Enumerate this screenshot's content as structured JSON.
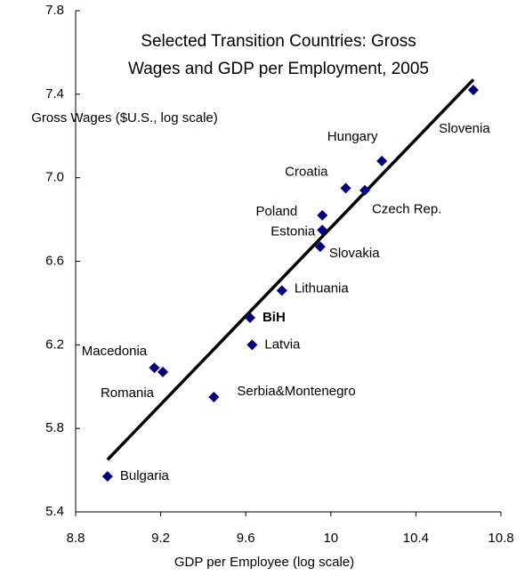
{
  "chart_data": {
    "type": "scatter",
    "title": [
      "Selected Transition Countries: Gross",
      "Wages and GDP per Employment, 2005"
    ],
    "x_label": "GDP per Employee (log scale)",
    "y_label": "Gross Wages ($U.S., log scale)",
    "labels": [
      "Bulgaria",
      "Macedonia",
      "Romania",
      "Serbia&Montenegro",
      "Latvia",
      "BiH",
      "Lithuania",
      "Slovakia",
      "Estonia",
      "Poland",
      "Croatia",
      "Czech Rep.",
      "Hungary",
      "Slovenia"
    ],
    "x": [
      8.95,
      9.17,
      9.21,
      9.45,
      9.63,
      9.62,
      9.77,
      9.95,
      9.96,
      9.96,
      10.07,
      10.16,
      10.24,
      10.67
    ],
    "values": [
      5.57,
      6.09,
      6.07,
      5.95,
      6.2,
      6.33,
      6.46,
      6.67,
      6.75,
      6.82,
      6.95,
      6.94,
      7.08,
      7.42
    ],
    "color": "#00007f",
    "trend": {
      "x": [
        8.95,
        10.67
      ],
      "values": [
        5.65,
        7.47
      ]
    },
    "xlim": [
      8.8,
      10.8
    ],
    "xticks": [
      8.8,
      9.2,
      9.6,
      10,
      10.4,
      10.8
    ],
    "ylim": [
      5.4,
      7.8
    ],
    "yticks": [
      {
        "value": 5.4,
        "label": "5.4"
      },
      {
        "value": 5.8,
        "label": "5.8"
      },
      {
        "value": 6.2,
        "label": "6.2"
      },
      {
        "value": 6.6,
        "label": "6.6"
      },
      {
        "value": 7.0,
        "label": "7.0"
      },
      {
        "value": 7.4,
        "label": "7.4"
      },
      {
        "value": 7.8,
        "label": "7.8"
      }
    ]
  }
}
